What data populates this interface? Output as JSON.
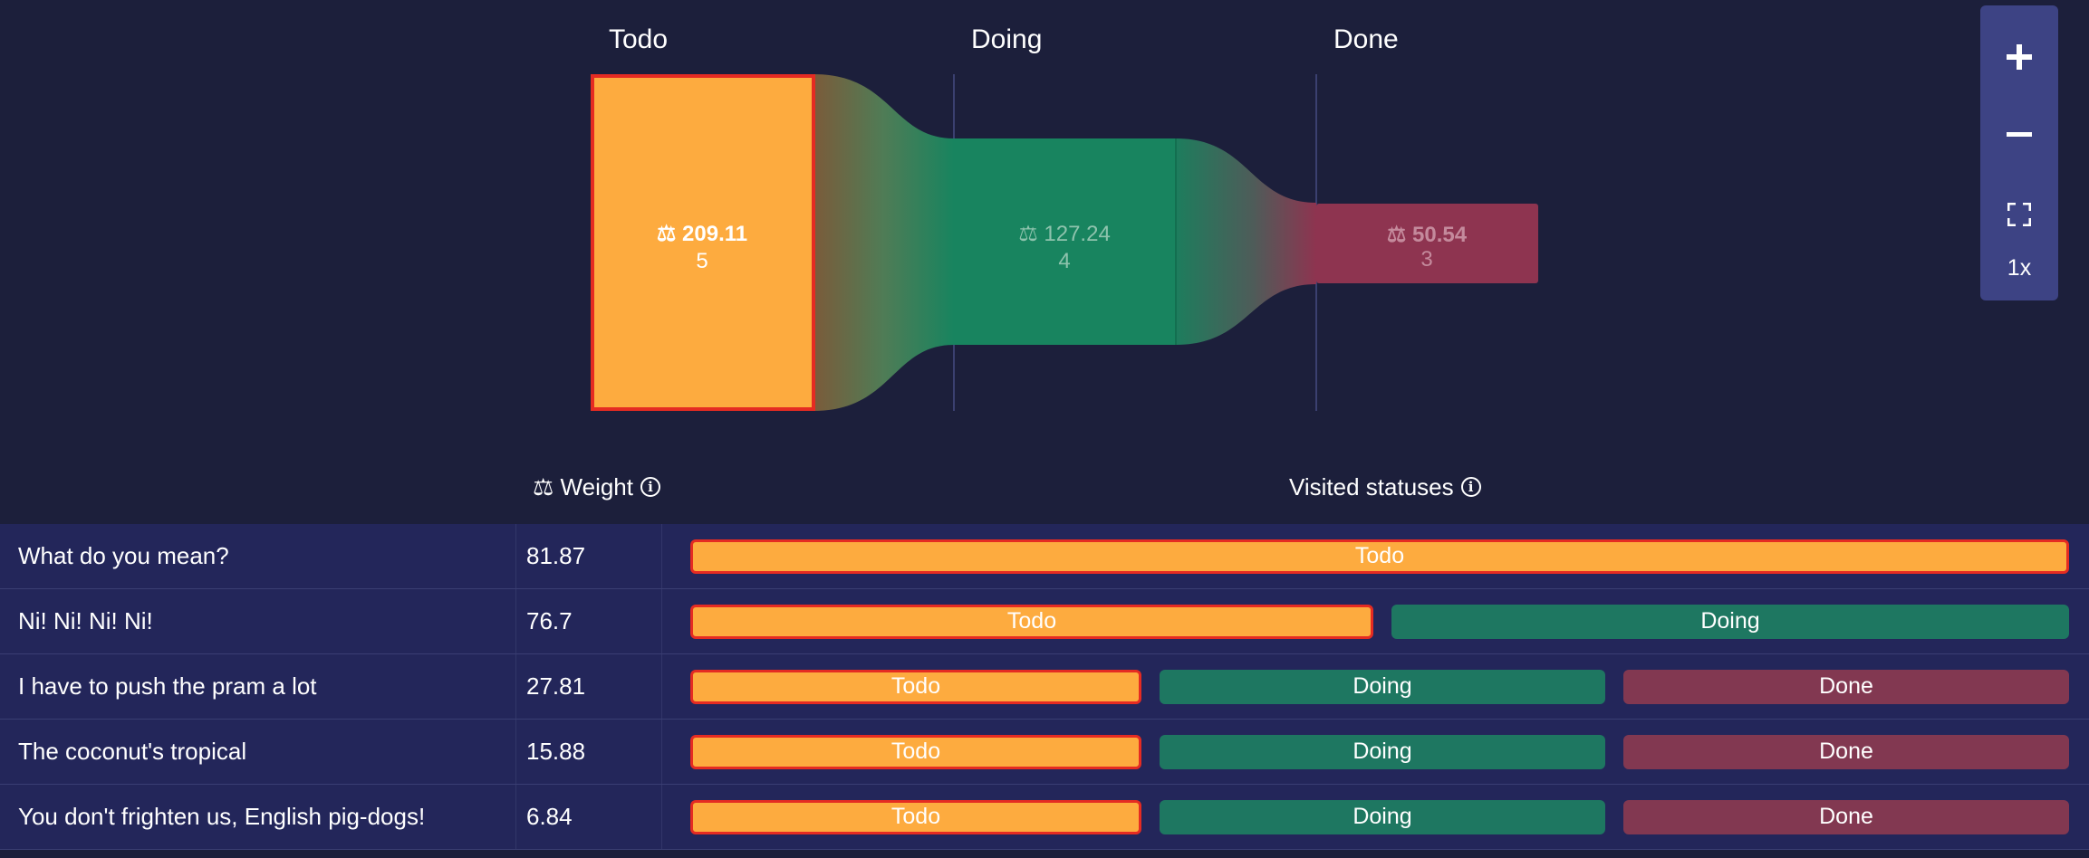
{
  "flow": {
    "stages": [
      {
        "label": "Todo",
        "weight": "⚖ 209.11",
        "count": "5",
        "color": "#fdab3f"
      },
      {
        "label": "Doing",
        "weight": "⚖ 127.24",
        "count": "4",
        "color": "#18845f"
      },
      {
        "label": "Done",
        "weight": "⚖ 50.54",
        "count": "3",
        "color": "#8e3450"
      }
    ],
    "highlight_color": "#e52b22"
  },
  "zoom": {
    "zoom_in_icon": "plus-icon",
    "zoom_out_icon": "minus-icon",
    "fit_icon": "fullscreen-corners-icon",
    "level": "1x"
  },
  "table": {
    "weight_header": "⚖ Weight",
    "statuses_header": "Visited statuses",
    "rows": [
      {
        "name": "What do you mean?",
        "weight": "81.87",
        "statuses": [
          "Todo"
        ]
      },
      {
        "name": "Ni! Ni! Ni! Ni!",
        "weight": "76.7",
        "statuses": [
          "Todo",
          "Doing"
        ]
      },
      {
        "name": "I have to push the pram a lot",
        "weight": "27.81",
        "statuses": [
          "Todo",
          "Doing",
          "Done"
        ]
      },
      {
        "name": "The coconut's tropical",
        "weight": "15.88",
        "statuses": [
          "Todo",
          "Doing",
          "Done"
        ]
      },
      {
        "name": "You don't frighten us, English pig-dogs!",
        "weight": "6.84",
        "statuses": [
          "Todo",
          "Doing",
          "Done"
        ]
      }
    ]
  }
}
